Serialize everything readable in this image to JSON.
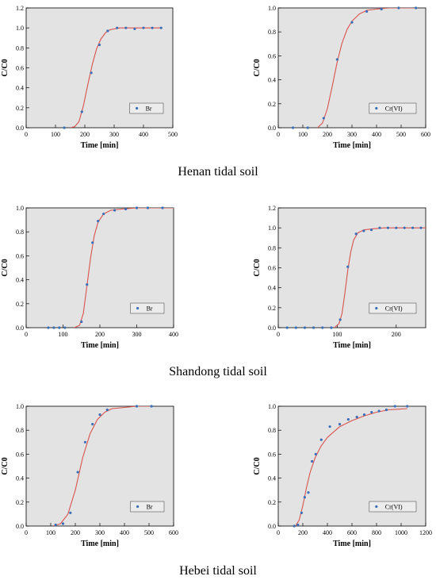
{
  "captions": [
    "Henan tidal soil",
    "Shandong tidal soil",
    "Hebei tidal soil"
  ],
  "colors": {
    "plot_bg": "#e3e3e3",
    "fit_line": "#d9534f",
    "points": "#3b6fb6"
  },
  "chart_data": [
    {
      "type": "scatter",
      "xlabel": "Time [min]",
      "ylabel": "C/C0",
      "xlim": [
        0,
        500
      ],
      "ylim": [
        0,
        1.2
      ],
      "xticks": [
        0,
        100,
        200,
        300,
        400,
        500
      ],
      "yticks": [
        0.0,
        0.2,
        0.4,
        0.6,
        0.8,
        1.0,
        1.2
      ],
      "legend": "bottom-right",
      "series": [
        {
          "name": "Br",
          "points": [
            [
              130,
              0
            ],
            [
              190,
              0.16
            ],
            [
              222,
              0.55
            ],
            [
              250,
              0.83
            ],
            [
              278,
              0.97
            ],
            [
              310,
              1.0
            ],
            [
              340,
              1.0
            ],
            [
              370,
              0.99
            ],
            [
              400,
              1.0
            ],
            [
              430,
              1.0
            ],
            [
              460,
              1.0
            ]
          ],
          "fit_points": [
            [
              150,
              0
            ],
            [
              165,
              0.01
            ],
            [
              180,
              0.06
            ],
            [
              195,
              0.22
            ],
            [
              210,
              0.43
            ],
            [
              225,
              0.63
            ],
            [
              240,
              0.79
            ],
            [
              255,
              0.89
            ],
            [
              270,
              0.95
            ],
            [
              285,
              0.98
            ],
            [
              300,
              0.99
            ],
            [
              320,
              1.0
            ],
            [
              460,
              1.0
            ]
          ]
        }
      ]
    },
    {
      "type": "scatter",
      "xlabel": "Time [min]",
      "ylabel": "C/C0",
      "xlim": [
        0,
        600
      ],
      "ylim": [
        0,
        1.0
      ],
      "xticks": [
        0,
        100,
        200,
        300,
        400,
        500,
        600
      ],
      "yticks": [
        0.0,
        0.2,
        0.4,
        0.6,
        0.8,
        1.0
      ],
      "legend": "bottom-right",
      "series": [
        {
          "name": "Cr(VI)",
          "points": [
            [
              60,
              0
            ],
            [
              120,
              0
            ],
            [
              185,
              0.08
            ],
            [
              240,
              0.57
            ],
            [
              300,
              0.88
            ],
            [
              360,
              0.97
            ],
            [
              420,
              0.99
            ],
            [
              490,
              1.0
            ],
            [
              560,
              1.0
            ]
          ],
          "fit_points": [
            [
              160,
              0
            ],
            [
              180,
              0.04
            ],
            [
              200,
              0.16
            ],
            [
              220,
              0.35
            ],
            [
              240,
              0.55
            ],
            [
              260,
              0.71
            ],
            [
              280,
              0.82
            ],
            [
              300,
              0.89
            ],
            [
              330,
              0.95
            ],
            [
              360,
              0.98
            ],
            [
              400,
              0.99
            ],
            [
              450,
              1.0
            ],
            [
              560,
              1.0
            ]
          ]
        }
      ]
    },
    {
      "type": "scatter",
      "xlabel": "Time [min]",
      "ylabel": "C/C0",
      "xlim": [
        0,
        400
      ],
      "ylim": [
        0,
        1.0
      ],
      "xticks": [
        0,
        100,
        200,
        300,
        400
      ],
      "yticks": [
        0.0,
        0.2,
        0.4,
        0.6,
        0.8,
        1.0
      ],
      "legend": "bottom-right",
      "series": [
        {
          "name": "Br",
          "points": [
            [
              60,
              0
            ],
            [
              75,
              0
            ],
            [
              90,
              0
            ],
            [
              105,
              0
            ],
            [
              150,
              0.05
            ],
            [
              165,
              0.36
            ],
            [
              180,
              0.71
            ],
            [
              195,
              0.89
            ],
            [
              210,
              0.95
            ],
            [
              240,
              0.98
            ],
            [
              270,
              0.99
            ],
            [
              300,
              1.0
            ],
            [
              330,
              1.0
            ],
            [
              370,
              1.0
            ]
          ],
          "fit_points": [
            [
              130,
              0
            ],
            [
              145,
              0.02
            ],
            [
              155,
              0.12
            ],
            [
              165,
              0.35
            ],
            [
              175,
              0.59
            ],
            [
              185,
              0.77
            ],
            [
              195,
              0.88
            ],
            [
              210,
              0.95
            ],
            [
              230,
              0.98
            ],
            [
              260,
              0.99
            ],
            [
              300,
              1.0
            ],
            [
              400,
              1.0
            ]
          ]
        }
      ]
    },
    {
      "type": "scatter",
      "xlabel": "Time [min]",
      "ylabel": "C/C0",
      "xlim": [
        0,
        250
      ],
      "ylim": [
        0,
        1.2
      ],
      "xticks": [
        0,
        100,
        200
      ],
      "yticks": [
        0.0,
        0.2,
        0.4,
        0.6,
        0.8,
        1.0,
        1.2
      ],
      "legend": "bottom-right",
      "series": [
        {
          "name": "Cr(VI)",
          "points": [
            [
              15,
              0
            ],
            [
              30,
              0
            ],
            [
              45,
              0
            ],
            [
              60,
              0
            ],
            [
              75,
              0
            ],
            [
              90,
              0
            ],
            [
              105,
              0.08
            ],
            [
              118,
              0.61
            ],
            [
              132,
              0.94
            ],
            [
              145,
              0.97
            ],
            [
              158,
              0.98
            ],
            [
              172,
              1.0
            ],
            [
              186,
              1.0
            ],
            [
              200,
              1.0
            ],
            [
              214,
              1.0
            ],
            [
              228,
              1.0
            ],
            [
              242,
              1.0
            ]
          ],
          "fit_points": [
            [
              95,
              0
            ],
            [
              103,
              0.04
            ],
            [
              108,
              0.14
            ],
            [
              113,
              0.35
            ],
            [
              118,
              0.58
            ],
            [
              123,
              0.76
            ],
            [
              128,
              0.88
            ],
            [
              135,
              0.95
            ],
            [
              145,
              0.98
            ],
            [
              160,
              0.99
            ],
            [
              180,
              1.0
            ],
            [
              250,
              1.0
            ]
          ]
        }
      ]
    },
    {
      "type": "scatter",
      "xlabel": "Time [min]",
      "ylabel": "C/C0",
      "xlim": [
        0,
        600
      ],
      "ylim": [
        0,
        1.0
      ],
      "xticks": [
        0,
        100,
        200,
        300,
        400,
        500,
        600
      ],
      "yticks": [
        0.0,
        0.2,
        0.4,
        0.6,
        0.8,
        1.0
      ],
      "legend": "bottom-right",
      "series": [
        {
          "name": "Br",
          "points": [
            [
              120,
              0.01
            ],
            [
              150,
              0.02
            ],
            [
              180,
              0.11
            ],
            [
              210,
              0.45
            ],
            [
              240,
              0.7
            ],
            [
              270,
              0.85
            ],
            [
              300,
              0.93
            ],
            [
              330,
              0.97
            ],
            [
              450,
              1.0
            ],
            [
              510,
              1.0
            ]
          ],
          "fit_points": [
            [
              110,
              0
            ],
            [
              140,
              0.02
            ],
            [
              170,
              0.1
            ],
            [
              200,
              0.3
            ],
            [
              230,
              0.57
            ],
            [
              260,
              0.77
            ],
            [
              290,
              0.89
            ],
            [
              320,
              0.95
            ],
            [
              350,
              0.98
            ],
            [
              400,
              0.99
            ],
            [
              450,
              1.0
            ],
            [
              510,
              1.0
            ]
          ]
        }
      ]
    },
    {
      "type": "scatter",
      "xlabel": "Time [min]",
      "ylabel": "C/C0",
      "xlim": [
        0,
        1200
      ],
      "ylim": [
        0,
        1.0
      ],
      "xticks": [
        0,
        200,
        400,
        600,
        800,
        1000,
        1200
      ],
      "yticks": [
        0.0,
        0.2,
        0.4,
        0.6,
        0.8,
        1.0
      ],
      "legend": "bottom-right",
      "series": [
        {
          "name": "Cr(VI)",
          "points": [
            [
              130,
              0
            ],
            [
              160,
              0.01
            ],
            [
              190,
              0.11
            ],
            [
              215,
              0.24
            ],
            [
              245,
              0.28
            ],
            [
              275,
              0.54
            ],
            [
              305,
              0.6
            ],
            [
              350,
              0.72
            ],
            [
              420,
              0.83
            ],
            [
              500,
              0.85
            ],
            [
              570,
              0.89
            ],
            [
              640,
              0.91
            ],
            [
              700,
              0.93
            ],
            [
              760,
              0.95
            ],
            [
              820,
              0.96
            ],
            [
              880,
              0.97
            ],
            [
              950,
              1.0
            ],
            [
              1050,
              1.0
            ]
          ],
          "fit_points": [
            [
              140,
              0
            ],
            [
              170,
              0.05
            ],
            [
              200,
              0.17
            ],
            [
              230,
              0.32
            ],
            [
              260,
              0.45
            ],
            [
              300,
              0.57
            ],
            [
              350,
              0.67
            ],
            [
              400,
              0.74
            ],
            [
              500,
              0.83
            ],
            [
              600,
              0.88
            ],
            [
              700,
              0.92
            ],
            [
              800,
              0.95
            ],
            [
              900,
              0.97
            ],
            [
              1050,
              0.98
            ]
          ]
        }
      ]
    }
  ]
}
